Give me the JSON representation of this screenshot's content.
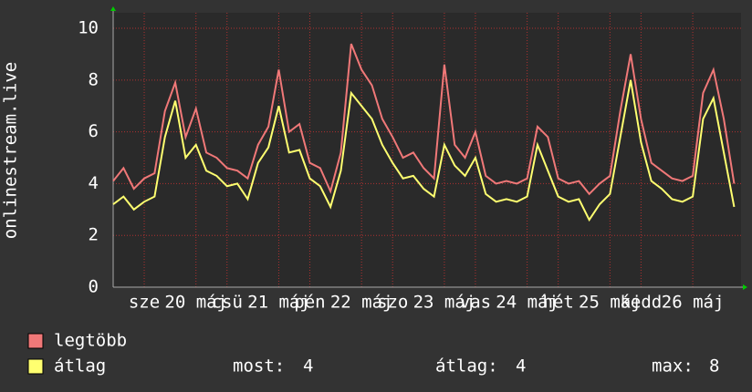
{
  "chart_data": {
    "type": "line",
    "y_label": "onlinestream.live",
    "x": [
      0,
      3,
      6,
      9,
      12,
      15,
      18,
      21,
      24,
      27,
      30,
      33,
      36,
      39,
      42,
      45,
      48,
      51,
      54,
      57,
      60,
      63,
      66,
      69,
      72,
      75,
      78,
      81,
      84,
      87,
      90,
      93,
      96,
      99,
      102,
      105,
      108,
      111,
      114,
      117,
      120,
      123,
      126,
      129,
      132,
      135,
      138,
      141,
      144,
      147,
      150,
      153,
      156,
      159,
      162,
      165,
      168,
      171,
      174,
      177,
      180
    ],
    "series": [
      {
        "name": "legtöbb",
        "color": "#f07878",
        "values": [
          4.1,
          4.6,
          3.8,
          4.2,
          4.4,
          6.8,
          7.9,
          5.8,
          6.9,
          5.2,
          5.0,
          4.6,
          4.5,
          4.2,
          5.5,
          6.2,
          8.4,
          6.0,
          6.3,
          4.8,
          4.6,
          3.7,
          5.2,
          9.4,
          8.4,
          7.8,
          6.5,
          5.8,
          5.0,
          5.2,
          4.6,
          4.2,
          8.6,
          5.5,
          5.0,
          6.0,
          4.3,
          4.0,
          4.1,
          4.0,
          4.2,
          6.2,
          5.8,
          4.2,
          4.0,
          4.1,
          3.6,
          4.0,
          4.3,
          6.8,
          9.0,
          6.5,
          4.8,
          4.5,
          4.2,
          4.1,
          4.3,
          7.5,
          8.4,
          6.5,
          4.0
        ]
      },
      {
        "name": "átlag",
        "color": "#ffff70",
        "values": [
          3.2,
          3.5,
          3.0,
          3.3,
          3.5,
          5.8,
          7.2,
          5.0,
          5.5,
          4.5,
          4.3,
          3.9,
          4.0,
          3.4,
          4.8,
          5.4,
          7.0,
          5.2,
          5.3,
          4.2,
          3.9,
          3.1,
          4.5,
          7.5,
          7.0,
          6.5,
          5.5,
          4.8,
          4.2,
          4.3,
          3.8,
          3.5,
          5.5,
          4.7,
          4.3,
          5.0,
          3.6,
          3.3,
          3.4,
          3.3,
          3.5,
          5.5,
          4.5,
          3.5,
          3.3,
          3.4,
          2.6,
          3.2,
          3.6,
          5.8,
          8.0,
          5.6,
          4.1,
          3.8,
          3.4,
          3.3,
          3.5,
          6.5,
          7.3,
          5.2,
          3.1
        ]
      }
    ],
    "xlim": [
      0,
      182
    ],
    "xticks": [
      {
        "value": 9,
        "label": "sze"
      },
      {
        "value": 24,
        "label": "20 máj"
      },
      {
        "value": 33,
        "label": "csü"
      },
      {
        "value": 48,
        "label": "21 máj"
      },
      {
        "value": 57,
        "label": "pén"
      },
      {
        "value": 72,
        "label": "22 máj"
      },
      {
        "value": 81,
        "label": "szo"
      },
      {
        "value": 96,
        "label": "23 máj"
      },
      {
        "value": 105,
        "label": "vas"
      },
      {
        "value": 120,
        "label": "24 máj"
      },
      {
        "value": 129,
        "label": "hét"
      },
      {
        "value": 144,
        "label": "25 máj"
      },
      {
        "value": 153,
        "label": "kedd"
      },
      {
        "value": 168,
        "label": "26 máj"
      }
    ],
    "ylim": [
      0,
      10.6
    ],
    "yticks": [
      0,
      2,
      4,
      6,
      8,
      10
    ],
    "grid": true,
    "stats": [
      {
        "label": "most:",
        "value": 4
      },
      {
        "label": "átlag:",
        "value": 4
      },
      {
        "label": "max:",
        "value": 8
      }
    ]
  }
}
